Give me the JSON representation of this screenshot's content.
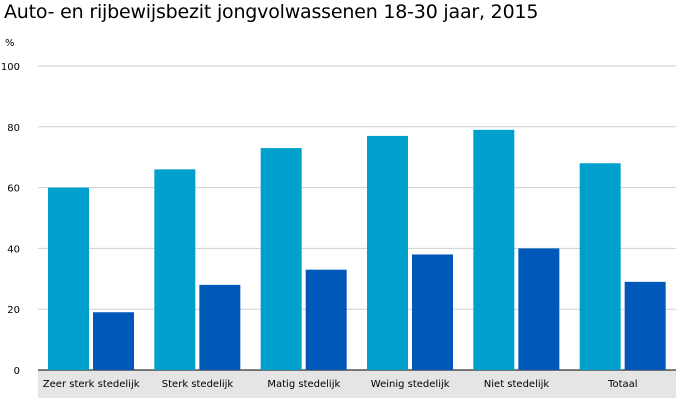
{
  "title": "Auto- en rijbewijsbezit jongvolwassenen 18-30 jaar, 2015",
  "unit_label": "%",
  "chart_data": {
    "type": "bar",
    "title": "Auto- en rijbewijsbezit jongvolwassenen 18-30 jaar, 2015",
    "ylabel": "%",
    "xlabel": "",
    "ylim": [
      0,
      100
    ],
    "yticks": [
      0,
      20,
      40,
      60,
      80,
      100
    ],
    "grid": true,
    "legend": "none",
    "categories": [
      "Zeer sterk stedelijk",
      "Sterk stedelijk",
      "Matig stedelijk",
      "Weinig stedelijk",
      "Niet stedelijk",
      "Totaal"
    ],
    "series": [
      {
        "values": [
          60,
          66,
          73,
          77,
          79,
          68
        ],
        "color": "#00a0cc"
      },
      {
        "values": [
          19,
          28,
          33,
          38,
          40,
          29
        ],
        "color": "#0059b8"
      }
    ]
  }
}
